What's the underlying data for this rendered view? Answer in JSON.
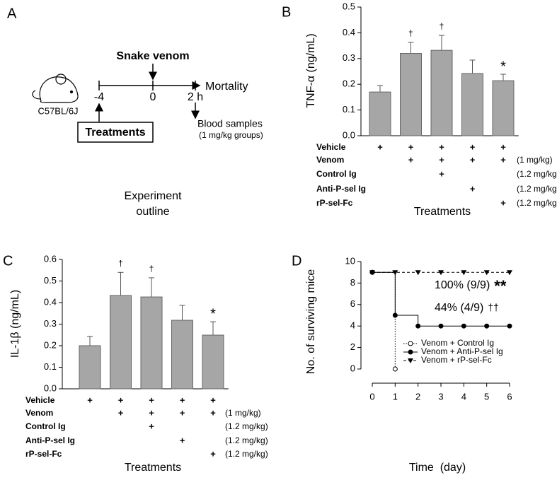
{
  "panel_labels": [
    "A",
    "B",
    "C",
    "D"
  ],
  "diagram": {
    "mouse_label": "C57BL/6J",
    "event": "Snake venom",
    "times": [
      "-4",
      "0",
      "2 h"
    ],
    "endpoint": "Mortality",
    "treatment": "Treatments",
    "sampling": "Blood samples",
    "sampling_note": "(1 mg/kg groups)",
    "caption": [
      "Experiment",
      "outline"
    ]
  },
  "chart_data": [
    {
      "type": "bar",
      "ylabel": "TNF-α (ng/mL)",
      "xlabel": "Treatments",
      "color": "#a6a6a6",
      "values": [
        0.17,
        0.32,
        0.332,
        0.242,
        0.214
      ],
      "errors": [
        0.025,
        0.043,
        0.058,
        0.052,
        0.025
      ],
      "annotations": [
        null,
        "†",
        "†",
        null,
        "*"
      ],
      "ylim": [
        0,
        0.5
      ],
      "yticks": [
        {
          "value": 0,
          "label": "0.0"
        },
        0.1,
        0.2,
        0.3,
        0.4,
        0.5
      ],
      "treatment_rows": [
        {
          "label": "Vehicle",
          "color": "#1f5fa8",
          "marks": [
            "+",
            "+",
            "+",
            "+",
            "+"
          ]
        },
        {
          "label": "Venom",
          "color": "#1a9a6a",
          "marks": [
            null,
            "+",
            "+",
            "+",
            "+"
          ],
          "dose": "(1 mg/kg)"
        },
        {
          "label": "Control Ig",
          "color": "#000000",
          "marks": [
            null,
            null,
            "+",
            null,
            null
          ],
          "dose": "(1.2 mg/kg)"
        },
        {
          "label": "Anti-P-sel Ig",
          "color": "#000000",
          "marks": [
            null,
            null,
            null,
            "+",
            null
          ],
          "dose": "(1.2 mg/kg)"
        },
        {
          "label": "rP-sel-Fc",
          "color": "#000000",
          "marks": [
            null,
            null,
            null,
            null,
            "+"
          ],
          "dose": "(1.2 mg/kg)"
        }
      ]
    },
    {
      "type": "bar",
      "ylabel": "IL-1β (ng/mL)",
      "xlabel": "Treatments",
      "color": "#a6a6a6",
      "values": [
        0.2,
        0.433,
        0.426,
        0.318,
        0.249
      ],
      "errors": [
        0.043,
        0.107,
        0.089,
        0.069,
        0.062
      ],
      "annotations": [
        null,
        "†",
        "†",
        null,
        "*"
      ],
      "ylim": [
        0,
        0.6
      ],
      "yticks": [
        {
          "value": 0,
          "label": "0.0"
        },
        0.1,
        0.2,
        0.3,
        0.4,
        0.5,
        0.6
      ],
      "treatment_rows": [
        {
          "label": "Vehicle",
          "color": "#1f5fa8",
          "marks": [
            "+",
            "+",
            "+",
            "+",
            "+"
          ]
        },
        {
          "label": "Venom",
          "color": "#1a9a6a",
          "marks": [
            null,
            "+",
            "+",
            "+",
            "+"
          ],
          "dose": "(1 mg/kg)"
        },
        {
          "label": "Control Ig",
          "color": "#000000",
          "marks": [
            null,
            null,
            "+",
            null,
            null
          ],
          "dose": "(1.2 mg/kg)"
        },
        {
          "label": "Anti-P-sel Ig",
          "color": "#000000",
          "marks": [
            null,
            null,
            null,
            "+",
            null
          ],
          "dose": "(1.2 mg/kg)"
        },
        {
          "label": "rP-sel-Fc",
          "color": "#000000",
          "marks": [
            null,
            null,
            null,
            null,
            "+"
          ],
          "dose": "(1.2 mg/kg)"
        }
      ]
    },
    {
      "type": "line",
      "step": true,
      "ylabel": "No. of surviving mice",
      "xlabel": "Time  (day)",
      "x": [
        0,
        1,
        2,
        3,
        4,
        5,
        6
      ],
      "xlim": [
        0,
        6
      ],
      "xticks": [
        0,
        1,
        2,
        3,
        4,
        5,
        6
      ],
      "ylim": [
        0,
        10
      ],
      "yticks": [
        0,
        2,
        4,
        6,
        8,
        10
      ],
      "series": [
        {
          "name": "Venom + Control Ig",
          "color": "#000000",
          "marker": "circle-open",
          "dash": "dotted",
          "values": [
            9,
            0,
            null,
            null,
            null,
            null,
            null
          ]
        },
        {
          "name": "Venom + Anti-P-sel Ig",
          "color": "#000000",
          "marker": "circle",
          "dash": "solid",
          "values": [
            9,
            5,
            4,
            4,
            4,
            4,
            4
          ]
        },
        {
          "name": "Venom + rP-sel-Fc",
          "color": "#000000",
          "marker": "triangle-down",
          "dash": "dashed",
          "values": [
            9,
            9,
            9,
            9,
            9,
            9,
            9
          ]
        }
      ],
      "annotations": [
        {
          "text": "100% (9/9)",
          "mark": "**"
        },
        {
          "text": "44% (4/9)",
          "mark": "††"
        }
      ]
    }
  ]
}
